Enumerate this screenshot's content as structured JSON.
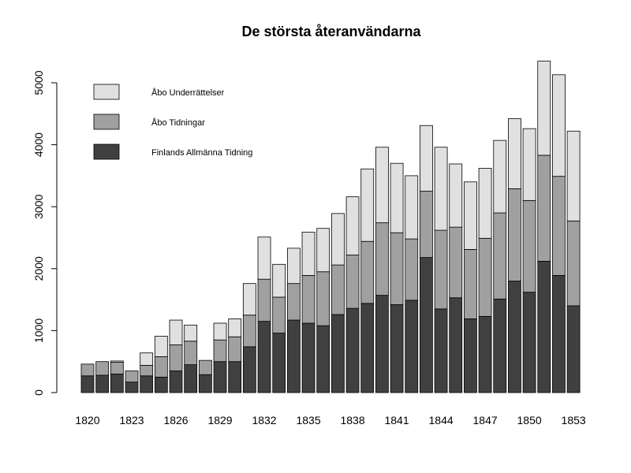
{
  "chart_data": {
    "type": "bar",
    "stacked": true,
    "title": "De största återanvändarna",
    "xlabel": "",
    "ylabel": "",
    "ylim": [
      0,
      5300
    ],
    "yticks": [
      "0",
      "1000",
      "2000",
      "3000",
      "4000",
      "5000"
    ],
    "ytick_values": [
      0,
      1000,
      2000,
      3000,
      4000,
      5000
    ],
    "categories": [
      1820,
      1821,
      1822,
      1823,
      1824,
      1825,
      1826,
      1827,
      1828,
      1829,
      1830,
      1831,
      1832,
      1833,
      1834,
      1835,
      1836,
      1837,
      1838,
      1839,
      1840,
      1841,
      1842,
      1843,
      1844,
      1845,
      1846,
      1847,
      1848,
      1849,
      1850,
      1851,
      1852,
      1853
    ],
    "xtick_labels": [
      "1820",
      "1823",
      "1826",
      "1829",
      "1832",
      "1835",
      "1838",
      "1841",
      "1844",
      "1847",
      "1850",
      "1853"
    ],
    "series": [
      {
        "name": "Finlands Allmänna Tidning",
        "color": "#404040",
        "values": [
          270,
          280,
          300,
          170,
          270,
          250,
          350,
          450,
          290,
          500,
          500,
          740,
          1150,
          960,
          1170,
          1120,
          1080,
          1260,
          1360,
          1440,
          1570,
          1420,
          1490,
          2180,
          1350,
          1530,
          1190,
          1230,
          1510,
          1800,
          1620,
          2120,
          1890,
          1400
        ]
      },
      {
        "name": "Åbo Tidningar",
        "color": "#a0a0a0",
        "values": [
          190,
          220,
          190,
          180,
          170,
          330,
          420,
          380,
          230,
          350,
          400,
          510,
          680,
          580,
          590,
          770,
          870,
          800,
          860,
          1000,
          1170,
          1160,
          990,
          1070,
          1270,
          1140,
          1120,
          1260,
          1390,
          1490,
          1480,
          1710,
          1600,
          1370
        ]
      },
      {
        "name": "Åbo Underrättelser",
        "color": "#e0e0e0",
        "values": [
          0,
          0,
          20,
          0,
          200,
          330,
          400,
          260,
          0,
          270,
          290,
          510,
          680,
          530,
          570,
          700,
          700,
          830,
          940,
          1170,
          1220,
          1120,
          1020,
          1060,
          1340,
          1020,
          1090,
          1130,
          1170,
          1130,
          1160,
          1520,
          1640,
          1450
        ]
      }
    ],
    "legend": {
      "placement": "top-left",
      "order": [
        "Åbo Underrättelser",
        "Åbo Tidningar",
        "Finlands Allmänna Tidning"
      ]
    },
    "grid": false
  }
}
